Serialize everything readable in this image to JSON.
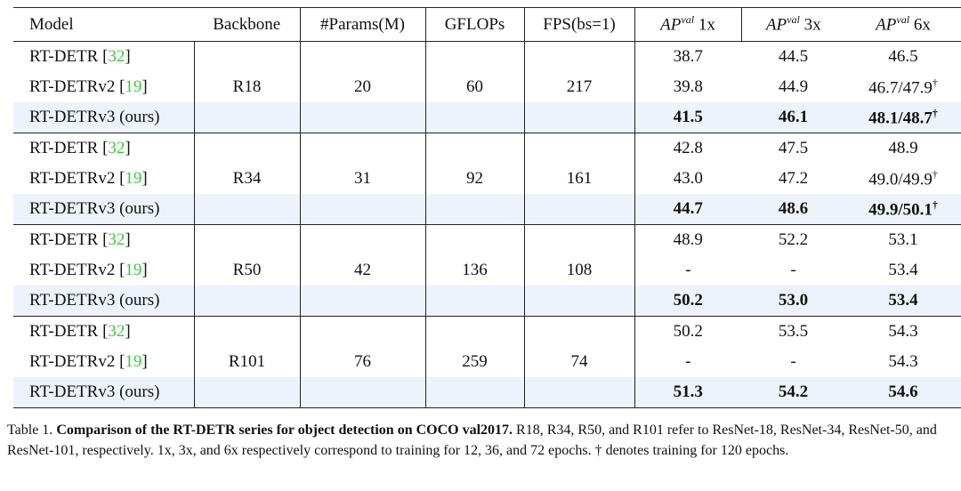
{
  "table": {
    "header": [
      "Model",
      "Backbone",
      "#Params(M)",
      "GFLOPs",
      "FPS(bs=1)",
      {
        "main": "AP",
        "sup": "val",
        "suffix": "1x"
      },
      {
        "main": "AP",
        "sup": "val",
        "suffix": "3x"
      },
      {
        "main": "AP",
        "sup": "val",
        "suffix": "6x"
      }
    ],
    "groups": [
      {
        "backbone": "R18",
        "params": "20",
        "gflops": "60",
        "fps": "217",
        "rows": [
          {
            "model": "RT-DETR",
            "ref": {
              "open": "[",
              "num": "32",
              "close": "]"
            },
            "ap": [
              "38.7",
              "44.5",
              {
                "text": "46.5"
              }
            ]
          },
          {
            "model": "RT-DETRv2",
            "ref": {
              "open": "[",
              "num": "19",
              "close": "]"
            },
            "ap": [
              "39.8",
              "44.9",
              {
                "text": "46.7/47.9",
                "mark": "†"
              }
            ]
          },
          {
            "model": "RT-DETRv3 (ours)",
            "ap": [
              "41.5",
              "46.1",
              {
                "text": "48.1/48.7",
                "mark": "†"
              }
            ]
          }
        ]
      },
      {
        "backbone": "R34",
        "params": "31",
        "gflops": "92",
        "fps": "161",
        "rows": [
          {
            "model": "RT-DETR",
            "ref": {
              "open": "[",
              "num": "32",
              "close": "]"
            },
            "ap": [
              "42.8",
              "47.5",
              {
                "text": "48.9"
              }
            ]
          },
          {
            "model": "RT-DETRv2",
            "ref": {
              "open": "[",
              "num": "19",
              "close": "]"
            },
            "ap": [
              "43.0",
              "47.2",
              {
                "text": "49.0/49.9",
                "mark": "†"
              }
            ]
          },
          {
            "model": "RT-DETRv3 (ours)",
            "ap": [
              "44.7",
              "48.6",
              {
                "text": "49.9/50.1",
                "mark": "†"
              }
            ]
          }
        ]
      },
      {
        "backbone": "R50",
        "params": "42",
        "gflops": "136",
        "fps": "108",
        "rows": [
          {
            "model": "RT-DETR",
            "ref": {
              "open": "[",
              "num": "32",
              "close": "]"
            },
            "ap": [
              "48.9",
              "52.2",
              {
                "text": "53.1"
              }
            ]
          },
          {
            "model": "RT-DETRv2",
            "ref": {
              "open": "[",
              "num": "19",
              "close": "]"
            },
            "ap": [
              "-",
              "-",
              {
                "text": "53.4"
              }
            ]
          },
          {
            "model": "RT-DETRv3 (ours)",
            "ap": [
              "50.2",
              "53.0",
              {
                "text": "53.4"
              }
            ]
          }
        ]
      },
      {
        "backbone": "R101",
        "params": "76",
        "gflops": "259",
        "fps": "74",
        "rows": [
          {
            "model": "RT-DETR",
            "ref": {
              "open": "[",
              "num": "32",
              "close": "]"
            },
            "ap": [
              "50.2",
              "53.5",
              {
                "text": "54.3"
              }
            ]
          },
          {
            "model": "RT-DETRv2",
            "ref": {
              "open": "[",
              "num": "19",
              "close": "]"
            },
            "ap": [
              "-",
              "-",
              {
                "text": "54.3"
              }
            ]
          },
          {
            "model": "RT-DETRv3 (ours)",
            "ap": [
              "51.3",
              "54.2",
              {
                "text": "54.6"
              }
            ]
          }
        ]
      }
    ]
  },
  "caption": {
    "label": "Table 1.",
    "bold": "Comparison of the RT-DETR series for object detection on COCO val2017.",
    "text": "R18, R34, R50, and R101 refer to ResNet-18, ResNet-34, ResNet-50, and ResNet-101, respectively.  1x, 3x, and 6x respectively correspond to training for 12, 36, and 72 epochs.  † denotes training for 120 epochs."
  }
}
